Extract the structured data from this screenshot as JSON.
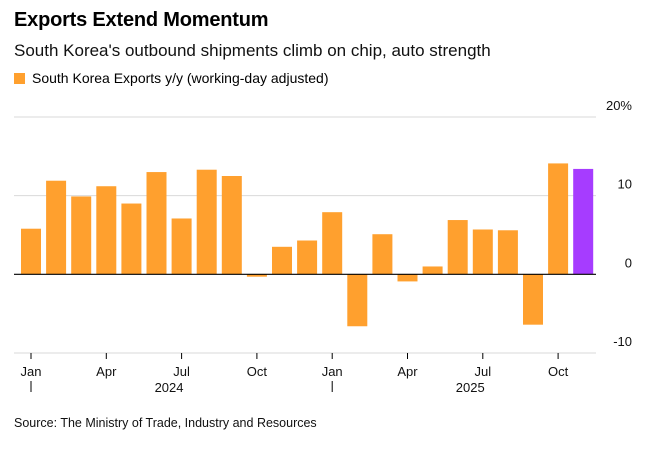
{
  "title": "Exports Extend Momentum",
  "subtitle": "South Korea's outbound shipments climb on chip, auto strength",
  "source": "Source: The Ministry of Trade, Industry and Resources",
  "colors": {
    "bar": "#FFA02E",
    "highlight": "#A63CFF"
  },
  "chart_data": {
    "type": "bar",
    "series": [
      {
        "name": "South Korea Exports y/y (working-day adjusted)",
        "values": [
          5.8,
          11.9,
          9.9,
          11.2,
          9.0,
          13.0,
          7.1,
          13.3,
          12.5,
          -0.3,
          3.5,
          4.3,
          7.9,
          -6.6,
          5.1,
          -0.9,
          1.0,
          6.9,
          5.7,
          5.6,
          -6.4,
          14.1,
          13.4
        ]
      }
    ],
    "highlight_index": 22,
    "ylim": [
      -10,
      20
    ],
    "yticks": [
      "20%",
      "10",
      "0",
      "-10"
    ],
    "ytick_values": [
      20,
      10,
      0,
      -10
    ],
    "xtick_labels": [
      {
        "index": 0,
        "label": "Jan"
      },
      {
        "index": 3,
        "label": "Apr"
      },
      {
        "index": 6,
        "label": "Jul"
      },
      {
        "index": 9,
        "label": "Oct"
      },
      {
        "index": 12,
        "label": "Jan"
      },
      {
        "index": 15,
        "label": "Apr"
      },
      {
        "index": 18,
        "label": "Jul"
      },
      {
        "index": 21,
        "label": "Oct"
      }
    ],
    "year_labels": [
      {
        "index": 0,
        "label": "2024"
      },
      {
        "index": 12,
        "label": "2025"
      }
    ],
    "xlabel": "",
    "ylabel": "",
    "grid": true,
    "legend": "top-left"
  }
}
